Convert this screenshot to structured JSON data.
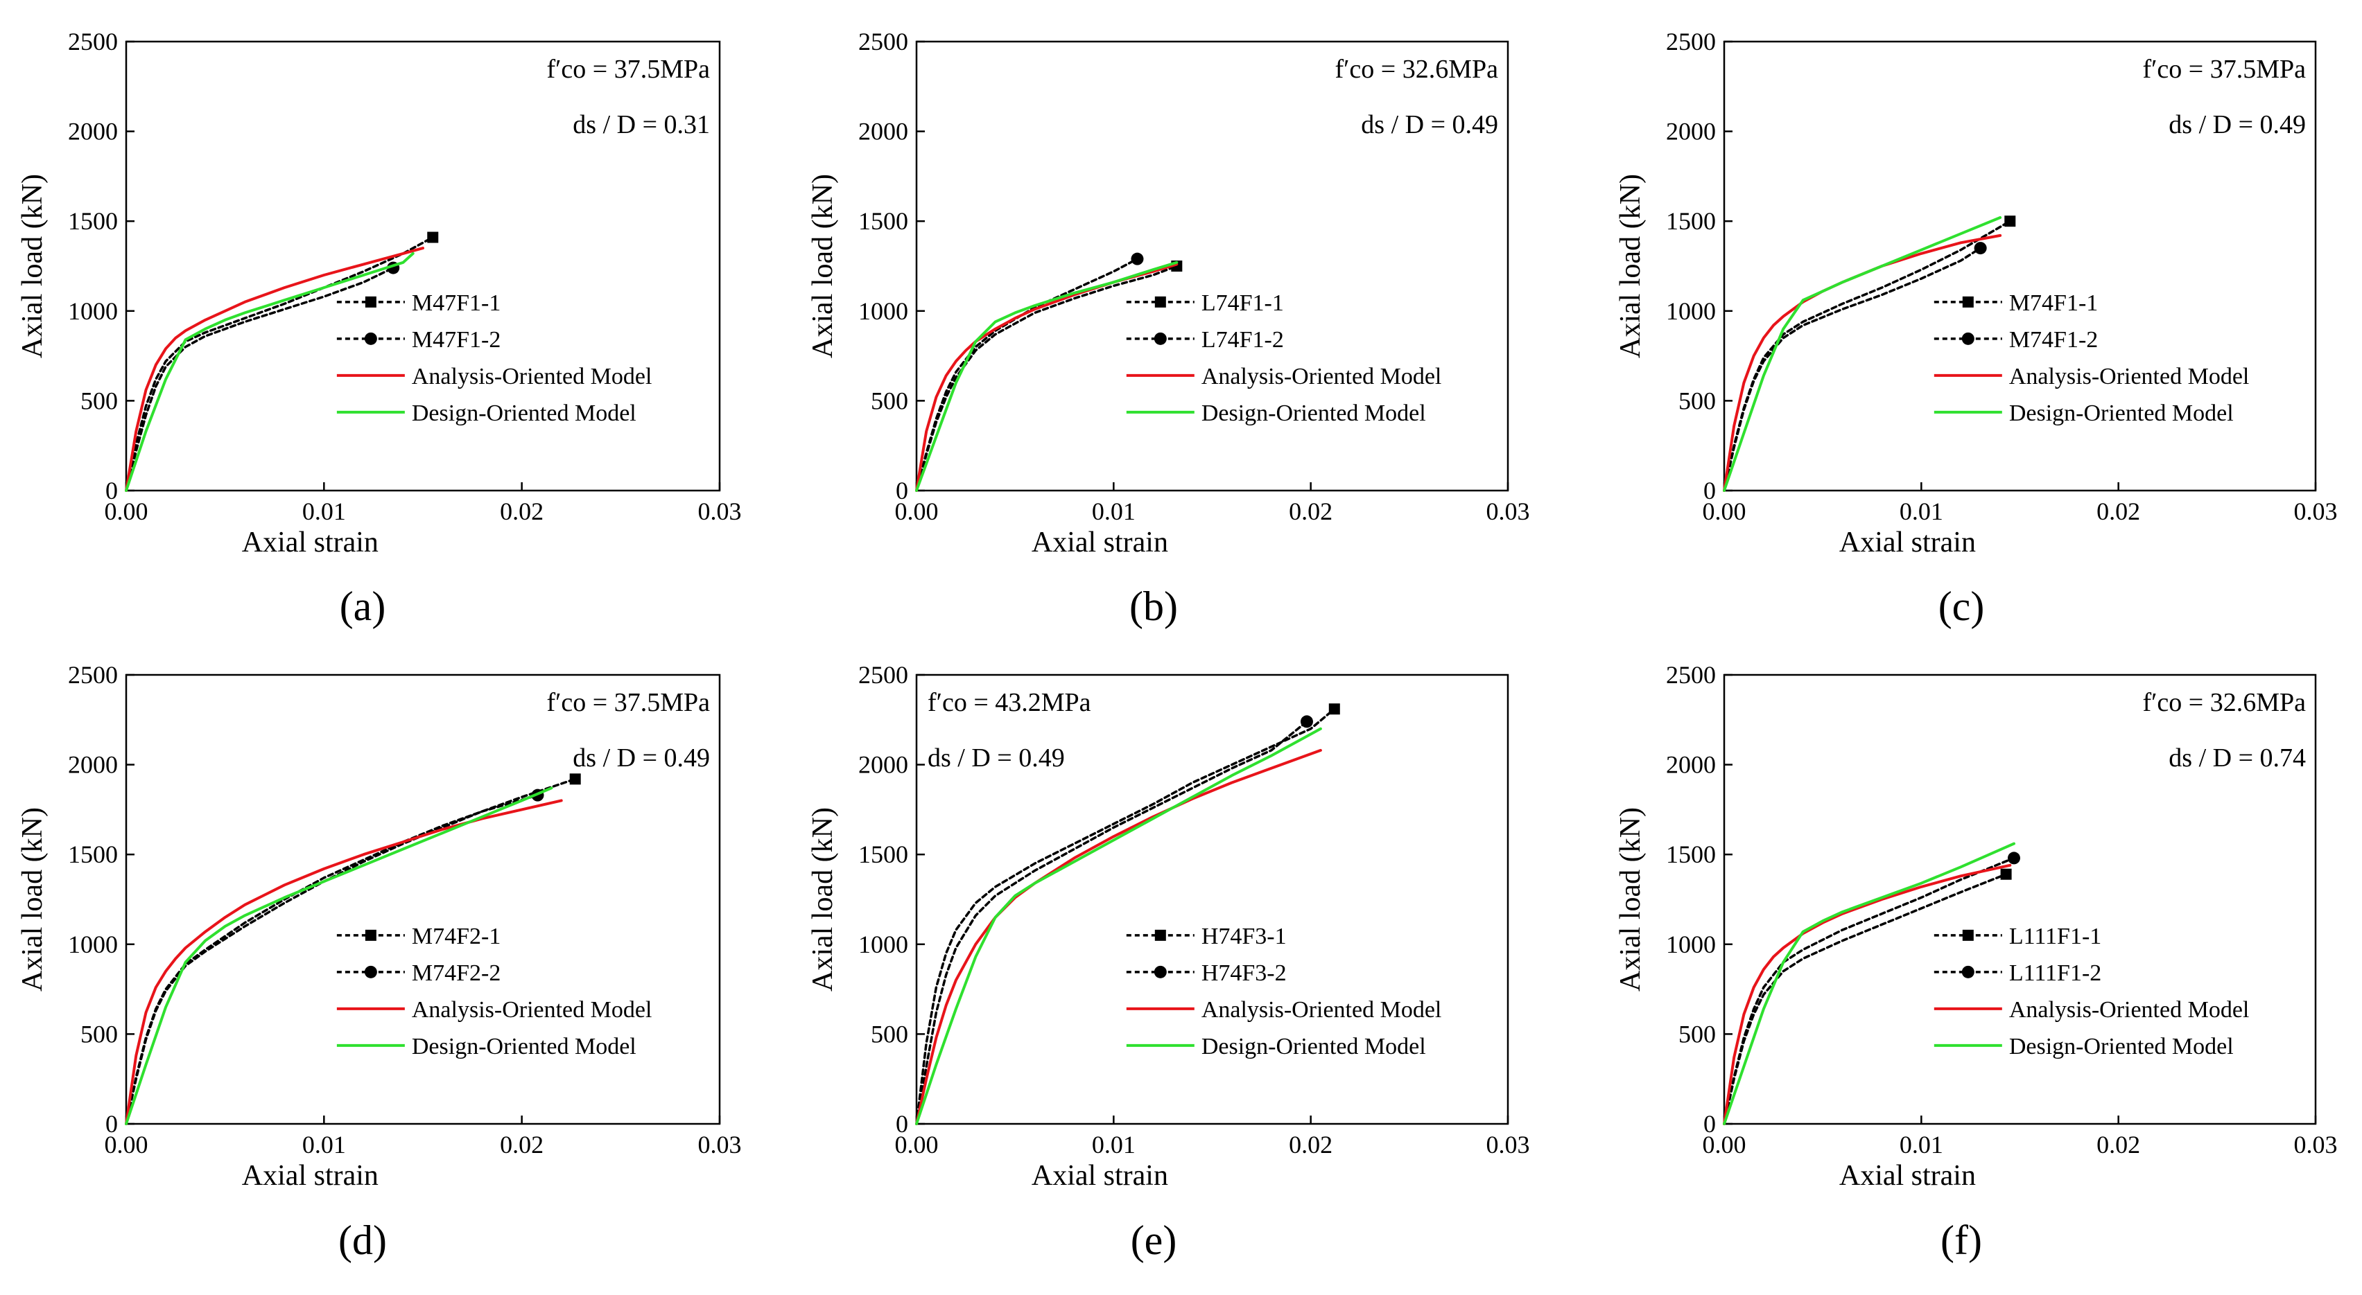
{
  "figure": {
    "panel_labels": [
      "(a)",
      "(b)",
      "(c)",
      "(d)",
      "(e)",
      "(f)"
    ]
  },
  "chart_data": [
    {
      "type": "line",
      "panel": "(a)",
      "xlabel": "Axial strain",
      "ylabel": "Axial load (kN)",
      "xlim": [
        0,
        0.03
      ],
      "ylim": [
        0,
        2500
      ],
      "xticks": [
        "0.00",
        "0.01",
        "0.02",
        "0.03"
      ],
      "yticks": [
        "0",
        "500",
        "1000",
        "1500",
        "2000",
        "2500"
      ],
      "annotation": {
        "fco_label": "f′co = 37.5MPa",
        "ratio_label": "ds / D = 0.31"
      },
      "series": [
        {
          "name": "M47F1-1",
          "style": "dotted-square",
          "color": "#000000",
          "x": [
            0,
            0.0005,
            0.001,
            0.0015,
            0.002,
            0.003,
            0.004,
            0.006,
            0.008,
            0.01,
            0.012,
            0.014,
            0.0155
          ],
          "y": [
            0,
            260,
            470,
            620,
            720,
            830,
            880,
            960,
            1040,
            1130,
            1220,
            1320,
            1410
          ]
        },
        {
          "name": "M47F1-2",
          "style": "dotted-circle",
          "color": "#000000",
          "x": [
            0,
            0.0005,
            0.001,
            0.0015,
            0.002,
            0.003,
            0.004,
            0.006,
            0.008,
            0.01,
            0.012,
            0.0135
          ],
          "y": [
            0,
            220,
            420,
            580,
            690,
            800,
            860,
            940,
            1010,
            1080,
            1160,
            1240
          ]
        },
        {
          "name": "Analysis-Oriented Model",
          "style": "solid",
          "color": "#e8141a",
          "x": [
            0,
            0.0005,
            0.001,
            0.0015,
            0.002,
            0.0025,
            0.003,
            0.004,
            0.005,
            0.006,
            0.008,
            0.01,
            0.012,
            0.014,
            0.015
          ],
          "y": [
            0,
            330,
            560,
            700,
            790,
            850,
            890,
            950,
            1000,
            1050,
            1130,
            1200,
            1260,
            1320,
            1350
          ]
        },
        {
          "name": "Design-Oriented Model",
          "style": "solid",
          "color": "#2fe02f",
          "x": [
            0,
            0.001,
            0.002,
            0.003,
            0.004,
            0.005,
            0.006,
            0.008,
            0.01,
            0.012,
            0.014,
            0.0145
          ],
          "y": [
            0,
            330,
            620,
            840,
            900,
            950,
            990,
            1060,
            1130,
            1200,
            1270,
            1320
          ]
        }
      ]
    },
    {
      "type": "line",
      "panel": "(b)",
      "xlabel": "Axial strain",
      "ylabel": "Axial load (kN)",
      "xlim": [
        0,
        0.03
      ],
      "ylim": [
        0,
        2500
      ],
      "xticks": [
        "0.00",
        "0.01",
        "0.02",
        "0.03"
      ],
      "yticks": [
        "0",
        "500",
        "1000",
        "1500",
        "2000",
        "2500"
      ],
      "annotation": {
        "fco_label": "f′co = 32.6MPa",
        "ratio_label": "ds / D = 0.49"
      },
      "series": [
        {
          "name": "L74F1-1",
          "style": "dotted-square",
          "color": "#000000",
          "x": [
            0,
            0.0005,
            0.001,
            0.0015,
            0.002,
            0.003,
            0.004,
            0.006,
            0.008,
            0.01,
            0.012,
            0.0132
          ],
          "y": [
            0,
            200,
            380,
            520,
            630,
            780,
            870,
            990,
            1070,
            1140,
            1200,
            1250
          ]
        },
        {
          "name": "L74F1-2",
          "style": "dotted-circle",
          "color": "#000000",
          "x": [
            0,
            0.0005,
            0.001,
            0.0015,
            0.002,
            0.003,
            0.004,
            0.006,
            0.008,
            0.01,
            0.0112
          ],
          "y": [
            0,
            210,
            400,
            550,
            660,
            800,
            890,
            1020,
            1120,
            1220,
            1290
          ]
        },
        {
          "name": "Analysis-Oriented Model",
          "style": "solid",
          "color": "#e8141a",
          "x": [
            0,
            0.0005,
            0.001,
            0.0015,
            0.002,
            0.0025,
            0.003,
            0.004,
            0.005,
            0.006,
            0.008,
            0.01,
            0.012,
            0.0132
          ],
          "y": [
            0,
            330,
            520,
            640,
            720,
            780,
            830,
            900,
            960,
            1010,
            1090,
            1160,
            1220,
            1260
          ]
        },
        {
          "name": "Design-Oriented Model",
          "style": "solid",
          "color": "#2fe02f",
          "x": [
            0,
            0.001,
            0.002,
            0.003,
            0.004,
            0.005,
            0.006,
            0.008,
            0.01,
            0.012,
            0.0132
          ],
          "y": [
            0,
            300,
            600,
            830,
            940,
            990,
            1030,
            1100,
            1160,
            1230,
            1270
          ]
        }
      ]
    },
    {
      "type": "line",
      "panel": "(c)",
      "xlabel": "Axial strain",
      "ylabel": "Axial load (kN)",
      "xlim": [
        0,
        0.03
      ],
      "ylim": [
        0,
        2500
      ],
      "xticks": [
        "0.00",
        "0.01",
        "0.02",
        "0.03"
      ],
      "yticks": [
        "0",
        "500",
        "1000",
        "1500",
        "2000",
        "2500"
      ],
      "annotation": {
        "fco_label": "f′co = 37.5MPa",
        "ratio_label": "ds / D = 0.49"
      },
      "series": [
        {
          "name": "M74F1-1",
          "style": "dotted-square",
          "color": "#000000",
          "x": [
            0,
            0.0005,
            0.001,
            0.0015,
            0.002,
            0.003,
            0.004,
            0.006,
            0.008,
            0.01,
            0.012,
            0.0145
          ],
          "y": [
            0,
            250,
            460,
            620,
            740,
            870,
            940,
            1040,
            1130,
            1230,
            1340,
            1500
          ]
        },
        {
          "name": "M74F1-2",
          "style": "dotted-circle",
          "color": "#000000",
          "x": [
            0,
            0.0005,
            0.001,
            0.0015,
            0.002,
            0.003,
            0.004,
            0.006,
            0.008,
            0.01,
            0.012,
            0.013
          ],
          "y": [
            0,
            240,
            450,
            610,
            720,
            850,
            920,
            1010,
            1090,
            1180,
            1280,
            1350
          ]
        },
        {
          "name": "Analysis-Oriented Model",
          "style": "solid",
          "color": "#e8141a",
          "x": [
            0,
            0.0005,
            0.001,
            0.0015,
            0.002,
            0.0025,
            0.003,
            0.004,
            0.005,
            0.006,
            0.008,
            0.01,
            0.012,
            0.014
          ],
          "y": [
            0,
            360,
            600,
            750,
            850,
            920,
            970,
            1050,
            1110,
            1160,
            1250,
            1320,
            1380,
            1420
          ]
        },
        {
          "name": "Design-Oriented Model",
          "style": "solid",
          "color": "#2fe02f",
          "x": [
            0,
            0.001,
            0.002,
            0.003,
            0.004,
            0.005,
            0.006,
            0.008,
            0.01,
            0.012,
            0.014
          ],
          "y": [
            0,
            320,
            640,
            900,
            1060,
            1110,
            1160,
            1250,
            1340,
            1430,
            1520
          ]
        }
      ]
    },
    {
      "type": "line",
      "panel": "(d)",
      "xlabel": "Axial strain",
      "ylabel": "Axial load (kN)",
      "xlim": [
        0,
        0.03
      ],
      "ylim": [
        0,
        2500
      ],
      "xticks": [
        "0.00",
        "0.01",
        "0.02",
        "0.03"
      ],
      "yticks": [
        "0",
        "500",
        "1000",
        "1500",
        "2000",
        "2500"
      ],
      "annotation": {
        "fco_label": "f′co = 37.5MPa",
        "ratio_label": "ds / D = 0.49"
      },
      "series": [
        {
          "name": "M74F2-1",
          "style": "dotted-square",
          "color": "#000000",
          "x": [
            0,
            0.0005,
            0.001,
            0.0015,
            0.002,
            0.003,
            0.004,
            0.006,
            0.008,
            0.01,
            0.012,
            0.014,
            0.016,
            0.018,
            0.02,
            0.0227
          ],
          "y": [
            0,
            250,
            470,
            630,
            740,
            880,
            960,
            1100,
            1230,
            1350,
            1460,
            1560,
            1650,
            1740,
            1820,
            1920
          ]
        },
        {
          "name": "M74F2-2",
          "style": "dotted-circle",
          "color": "#000000",
          "x": [
            0,
            0.0005,
            0.001,
            0.0015,
            0.002,
            0.003,
            0.004,
            0.006,
            0.008,
            0.01,
            0.012,
            0.014,
            0.016,
            0.018,
            0.0208
          ],
          "y": [
            0,
            260,
            480,
            640,
            750,
            890,
            970,
            1120,
            1250,
            1370,
            1470,
            1570,
            1660,
            1740,
            1830
          ]
        },
        {
          "name": "Analysis-Oriented Model",
          "style": "solid",
          "color": "#e8141a",
          "x": [
            0,
            0.0005,
            0.001,
            0.0015,
            0.002,
            0.0025,
            0.003,
            0.004,
            0.005,
            0.006,
            0.008,
            0.01,
            0.012,
            0.014,
            0.016,
            0.018,
            0.02,
            0.022
          ],
          "y": [
            0,
            380,
            620,
            760,
            850,
            920,
            980,
            1070,
            1150,
            1220,
            1330,
            1420,
            1500,
            1570,
            1640,
            1700,
            1750,
            1800
          ]
        },
        {
          "name": "Design-Oriented Model",
          "style": "solid",
          "color": "#2fe02f",
          "x": [
            0,
            0.001,
            0.002,
            0.003,
            0.004,
            0.005,
            0.006,
            0.008,
            0.01,
            0.012,
            0.014,
            0.016,
            0.018,
            0.02,
            0.0215
          ],
          "y": [
            0,
            330,
            650,
            900,
            1020,
            1100,
            1160,
            1260,
            1350,
            1440,
            1530,
            1620,
            1710,
            1800,
            1870
          ]
        }
      ]
    },
    {
      "type": "line",
      "panel": "(e)",
      "xlabel": "Axial strain",
      "ylabel": "Axial load (kN)",
      "xlim": [
        0,
        0.03
      ],
      "ylim": [
        0,
        2500
      ],
      "xticks": [
        "0.00",
        "0.01",
        "0.02",
        "0.03"
      ],
      "yticks": [
        "0",
        "500",
        "1000",
        "1500",
        "2000",
        "2500"
      ],
      "annotation": {
        "fco_label": "f′co = 43.2MPa",
        "ratio_label": "ds / D = 0.49"
      },
      "series": [
        {
          "name": "H74F3-1",
          "style": "dotted-square",
          "color": "#000000",
          "x": [
            0,
            0.0005,
            0.001,
            0.0015,
            0.002,
            0.003,
            0.004,
            0.006,
            0.008,
            0.01,
            0.012,
            0.014,
            0.016,
            0.018,
            0.02,
            0.0212
          ],
          "y": [
            0,
            450,
            760,
            950,
            1080,
            1230,
            1320,
            1450,
            1560,
            1670,
            1780,
            1900,
            2000,
            2100,
            2200,
            2310
          ]
        },
        {
          "name": "H74F3-2",
          "style": "dotted-circle",
          "color": "#000000",
          "x": [
            0,
            0.0005,
            0.001,
            0.0015,
            0.002,
            0.003,
            0.004,
            0.006,
            0.008,
            0.01,
            0.012,
            0.014,
            0.016,
            0.018,
            0.0198
          ],
          "y": [
            0,
            320,
            620,
            830,
            980,
            1160,
            1270,
            1410,
            1530,
            1650,
            1760,
            1870,
            1980,
            2080,
            2240
          ]
        },
        {
          "name": "Analysis-Oriented Model",
          "style": "solid",
          "color": "#e8141a",
          "x": [
            0,
            0.0005,
            0.001,
            0.0015,
            0.002,
            0.003,
            0.004,
            0.005,
            0.006,
            0.008,
            0.01,
            0.012,
            0.014,
            0.016,
            0.018,
            0.0205
          ],
          "y": [
            0,
            250,
            480,
            660,
            800,
            1000,
            1150,
            1260,
            1340,
            1480,
            1600,
            1710,
            1810,
            1900,
            1980,
            2080
          ]
        },
        {
          "name": "Design-Oriented Model",
          "style": "solid",
          "color": "#2fe02f",
          "x": [
            0,
            0.001,
            0.002,
            0.003,
            0.004,
            0.005,
            0.006,
            0.008,
            0.01,
            0.012,
            0.014,
            0.016,
            0.018,
            0.0205
          ],
          "y": [
            0,
            330,
            640,
            930,
            1150,
            1270,
            1340,
            1460,
            1580,
            1700,
            1820,
            1940,
            2050,
            2200
          ]
        }
      ]
    },
    {
      "type": "line",
      "panel": "(f)",
      "xlabel": "Axial strain",
      "ylabel": "Axial load (kN)",
      "xlim": [
        0,
        0.03
      ],
      "ylim": [
        0,
        2500
      ],
      "xticks": [
        "0.00",
        "0.01",
        "0.02",
        "0.03"
      ],
      "yticks": [
        "0",
        "500",
        "1000",
        "1500",
        "2000",
        "2500"
      ],
      "annotation": {
        "fco_label": "f′co = 32.6MPa",
        "ratio_label": "ds / D = 0.74"
      },
      "series": [
        {
          "name": "L111F1-1",
          "style": "dotted-square",
          "color": "#000000",
          "x": [
            0,
            0.0005,
            0.001,
            0.0015,
            0.002,
            0.003,
            0.004,
            0.006,
            0.008,
            0.01,
            0.012,
            0.0143
          ],
          "y": [
            0,
            250,
            460,
            610,
            720,
            850,
            920,
            1020,
            1110,
            1200,
            1290,
            1390
          ]
        },
        {
          "name": "L111F1-2",
          "style": "dotted-circle",
          "color": "#000000",
          "x": [
            0,
            0.0005,
            0.001,
            0.0015,
            0.002,
            0.003,
            0.004,
            0.006,
            0.008,
            0.01,
            0.012,
            0.0147
          ],
          "y": [
            0,
            260,
            480,
            640,
            760,
            900,
            970,
            1080,
            1170,
            1260,
            1360,
            1480
          ]
        },
        {
          "name": "Analysis-Oriented Model",
          "style": "solid",
          "color": "#e8141a",
          "x": [
            0,
            0.0005,
            0.001,
            0.0015,
            0.002,
            0.0025,
            0.003,
            0.004,
            0.005,
            0.006,
            0.008,
            0.01,
            0.012,
            0.0145
          ],
          "y": [
            0,
            370,
            610,
            760,
            860,
            930,
            980,
            1060,
            1120,
            1170,
            1250,
            1320,
            1380,
            1440
          ]
        },
        {
          "name": "Design-Oriented Model",
          "style": "solid",
          "color": "#2fe02f",
          "x": [
            0,
            0.001,
            0.002,
            0.003,
            0.004,
            0.005,
            0.006,
            0.008,
            0.01,
            0.012,
            0.0147
          ],
          "y": [
            0,
            320,
            640,
            900,
            1070,
            1130,
            1180,
            1260,
            1340,
            1430,
            1560
          ]
        }
      ]
    }
  ]
}
